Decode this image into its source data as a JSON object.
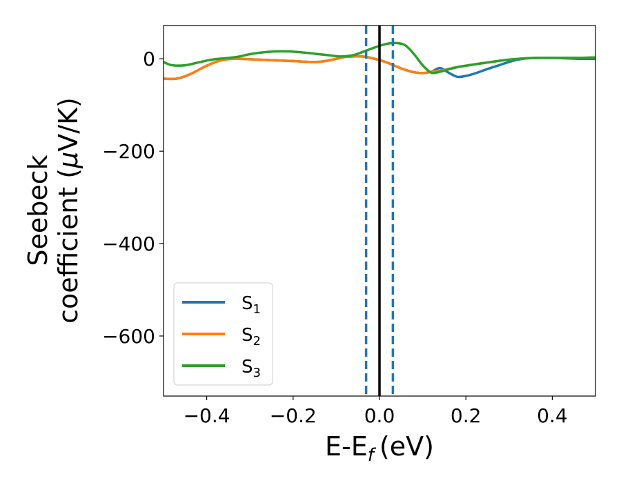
{
  "chart_data": {
    "type": "line",
    "title": "",
    "xlabel": "E-E",
    "xlabel_sub": "f",
    "xlabel_unit": "(eV)",
    "ylabel_line1": "Seebeck",
    "ylabel_line2": "coefficient  (",
    "ylabel_mu": "μ",
    "ylabel_unit": "V/K)",
    "xlim": [
      -0.5,
      0.5
    ],
    "ylim": [
      -730,
      72
    ],
    "xticks": [
      -0.4,
      -0.2,
      0.0,
      0.2,
      0.4
    ],
    "xtick_labels": [
      "−0.4",
      "−0.2",
      "0.0",
      "0.2",
      "0.4"
    ],
    "yticks": [
      0,
      -200,
      -400,
      -600
    ],
    "ytick_labels": [
      "0",
      "−200",
      "−400",
      "−600"
    ],
    "grid": false,
    "legend_position": "lower-left",
    "series": [
      {
        "name": "S",
        "sub": "1",
        "color": "#1f77b4",
        "x": [
          -0.5,
          -0.47,
          -0.44,
          -0.4,
          -0.37,
          -0.34,
          -0.3,
          -0.25,
          -0.2,
          -0.15,
          -0.12,
          -0.1,
          -0.08,
          -0.06,
          -0.04,
          -0.02,
          0.0,
          0.02,
          0.04,
          0.06,
          0.08,
          0.1,
          0.12,
          0.14,
          0.16,
          0.18,
          0.2,
          0.22,
          0.25,
          0.28,
          0.31,
          0.34,
          0.37,
          0.4,
          0.43,
          0.46,
          0.5
        ],
        "y": [
          -43,
          -43,
          -34,
          -15,
          -4,
          0,
          -1,
          -3,
          -5,
          -7,
          -4,
          0,
          4,
          5,
          5,
          2,
          -3,
          -9,
          -17,
          -24,
          -29,
          -31,
          -28,
          -20,
          -30,
          -39,
          -37,
          -32,
          -22,
          -13,
          -4,
          1,
          2,
          2,
          1,
          0,
          0
        ]
      },
      {
        "name": "S",
        "sub": "2",
        "color": "#ff7f0e",
        "x": [
          -0.5,
          -0.47,
          -0.44,
          -0.4,
          -0.37,
          -0.34,
          -0.3,
          -0.25,
          -0.2,
          -0.15,
          -0.12,
          -0.1,
          -0.08,
          -0.06,
          -0.04,
          -0.02,
          0.0,
          0.02,
          0.04,
          0.06,
          0.08,
          0.1,
          0.12,
          0.14,
          0.16,
          0.18,
          0.2,
          0.22,
          0.25,
          0.28,
          0.31,
          0.34,
          0.37,
          0.4,
          0.43,
          0.46,
          0.5
        ],
        "y": [
          -43,
          -43,
          -34,
          -15,
          -4,
          0,
          -1,
          -3,
          -5,
          -7,
          -4,
          0,
          4,
          5,
          5,
          2,
          -3,
          -9,
          -17,
          -24,
          -29,
          -31,
          -28,
          -26,
          -22,
          -18,
          -15,
          -12,
          -8,
          -4,
          -1,
          1,
          2,
          2,
          2,
          2,
          3
        ]
      },
      {
        "name": "S",
        "sub": "3",
        "color": "#2ca02c",
        "x": [
          -0.5,
          -0.48,
          -0.45,
          -0.42,
          -0.39,
          -0.36,
          -0.33,
          -0.3,
          -0.27,
          -0.24,
          -0.21,
          -0.18,
          -0.15,
          -0.12,
          -0.09,
          -0.06,
          -0.03,
          0.0,
          0.02,
          0.04,
          0.06,
          0.08,
          0.1,
          0.12,
          0.14,
          0.16,
          0.18,
          0.2,
          0.22,
          0.25,
          0.28,
          0.31,
          0.34,
          0.37,
          0.4,
          0.43,
          0.46,
          0.5
        ],
        "y": [
          -7,
          -14,
          -14,
          -8,
          -2,
          1,
          4,
          10,
          14,
          16,
          16,
          14,
          11,
          8,
          5,
          8,
          18,
          28,
          33,
          34,
          29,
          10,
          -14,
          -30,
          -28,
          -23,
          -18,
          -15,
          -12,
          -8,
          -4,
          -1,
          1,
          2,
          2,
          2,
          2,
          3
        ]
      }
    ],
    "vlines": [
      {
        "x": -0.031,
        "color": "#1f77b4",
        "style": "dashed"
      },
      {
        "x": 0.0,
        "color": "#000000",
        "style": "solid"
      },
      {
        "x": 0.031,
        "color": "#1f77b4",
        "style": "dashed"
      }
    ]
  }
}
